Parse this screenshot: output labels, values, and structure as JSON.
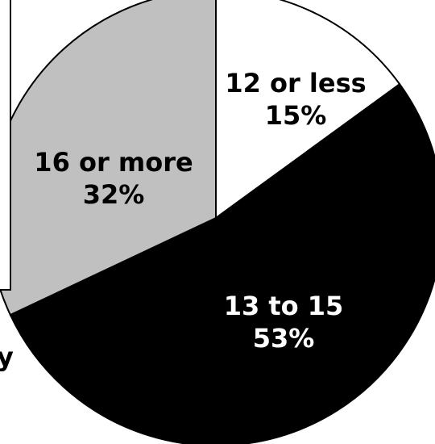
{
  "chart_data": {
    "type": "pie",
    "slices": [
      {
        "label": "12 or less",
        "value": 15,
        "value_label": "15%",
        "color": "#ffffff",
        "text_color": "#000000"
      },
      {
        "label": "13 to 15",
        "value": 53,
        "value_label": "53%",
        "color": "#000000",
        "text_color": "#ffffff"
      },
      {
        "label": "16 or more",
        "value": 32,
        "value_label": "32%",
        "color": "#c0c0c0",
        "text_color": "#000000"
      }
    ],
    "start_angle_deg": 0,
    "direction": "clockwise",
    "cropped_text": "y"
  }
}
